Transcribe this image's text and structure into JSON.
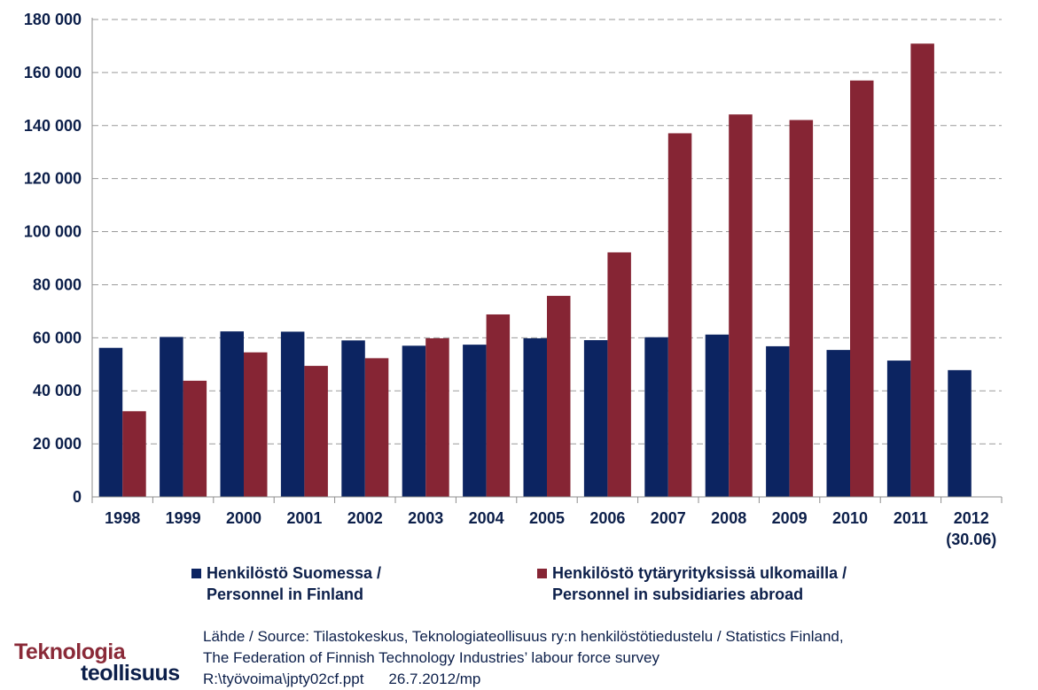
{
  "chart_data": {
    "type": "bar",
    "title": "",
    "xlabel": "",
    "ylabel": "",
    "ylim": [
      0,
      180000
    ],
    "y_ticks": [
      0,
      20000,
      40000,
      60000,
      80000,
      100000,
      120000,
      140000,
      160000,
      180000
    ],
    "y_tick_labels": [
      "0",
      "20 000",
      "40 000",
      "60 000",
      "80 000",
      "100 000",
      "120 000",
      "140 000",
      "160 000",
      "180 000"
    ],
    "grid": true,
    "legend_position": "bottom",
    "categories": [
      {
        "line1": "1998",
        "line2": ""
      },
      {
        "line1": "1999",
        "line2": ""
      },
      {
        "line1": "2000",
        "line2": ""
      },
      {
        "line1": "2001",
        "line2": ""
      },
      {
        "line1": "2002",
        "line2": ""
      },
      {
        "line1": "2003",
        "line2": ""
      },
      {
        "line1": "2004",
        "line2": ""
      },
      {
        "line1": "2005",
        "line2": ""
      },
      {
        "line1": "2006",
        "line2": ""
      },
      {
        "line1": "2007",
        "line2": ""
      },
      {
        "line1": "2008",
        "line2": ""
      },
      {
        "line1": "2009",
        "line2": ""
      },
      {
        "line1": "2010",
        "line2": ""
      },
      {
        "line1": "2011",
        "line2": ""
      },
      {
        "line1": "2012",
        "line2": "(30.06)"
      }
    ],
    "series": [
      {
        "name_line1": "Henkilöstö Suomessa /",
        "name_line2": "Personnel in Finland",
        "color": "#0c2461",
        "values": [
          56200,
          60300,
          62400,
          62300,
          59000,
          57000,
          57400,
          59800,
          59100,
          60200,
          61200,
          56800,
          55400,
          51400,
          47800
        ]
      },
      {
        "name_line1": "Henkilöstö tytäryrityksissä ulkomailla /",
        "name_line2": "Personnel in subsidiaries abroad",
        "color": "#862534",
        "values": [
          32300,
          43800,
          54500,
          49400,
          52300,
          59800,
          68800,
          75800,
          92200,
          137100,
          144200,
          142100,
          157000,
          170900,
          null
        ]
      }
    ]
  },
  "logo": {
    "line1": "Teknologia",
    "line2": "teollisuus"
  },
  "source": {
    "line1": "Lähde / Source: Tilastokeskus, Teknologiateollisuus ry:n henkilöstötiedustelu / Statistics Finland,",
    "line2": "The Federation of Finnish Technology Industries’ labour force survey",
    "file": "R:\\työvoima\\jpty02cf.ppt",
    "date": "26.7.2012/mp"
  },
  "colors": {
    "axis_text": "#0c1f4a",
    "grid": "#9a9a9a"
  }
}
